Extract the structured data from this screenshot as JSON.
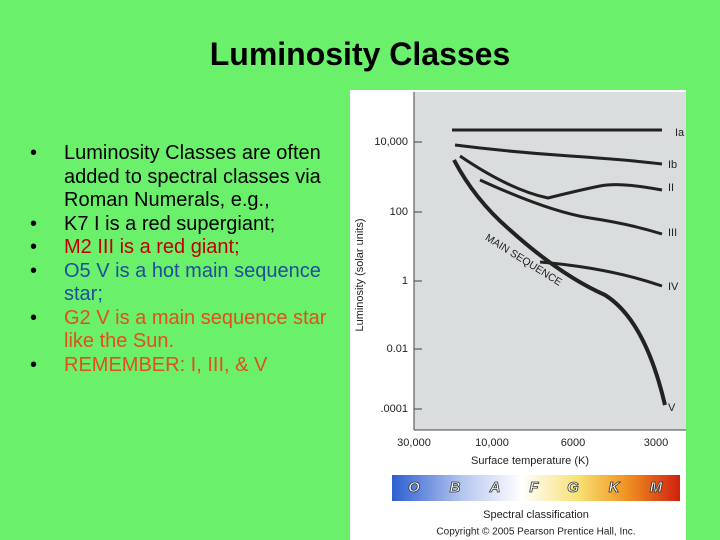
{
  "title": "Luminosity Classes",
  "bullets": [
    "Luminosity Classes are often added to spectral classes via Roman Numerals, e.g.,",
    "K7 I is a red supergiant;",
    "M2 III is a red giant;",
    "O5 V is a hot main sequence star;",
    "G2 V is a main sequence star like the Sun.",
    "REMEMBER: I, III, & V"
  ],
  "figure": {
    "y_axis_label": "Luminosity (solar units)",
    "y_tick_labels": [
      "10,000",
      "100",
      "1",
      "0.01",
      ".0001"
    ],
    "x_axis_label": "Surface temperature (K)",
    "x_tick_labels": [
      "30,000",
      "10,000",
      "6000",
      "3000"
    ],
    "curve_labels": [
      "Ia",
      "Ib",
      "II",
      "III",
      "IV",
      "V"
    ],
    "main_sequence_label": "MAIN SEQUENCE",
    "spectral_classes": [
      "O",
      "B",
      "A",
      "F",
      "G",
      "K",
      "M"
    ],
    "spectral_label": "Spectral classification",
    "copyright": "Copyright © 2005 Pearson Prentice Hall, Inc."
  }
}
